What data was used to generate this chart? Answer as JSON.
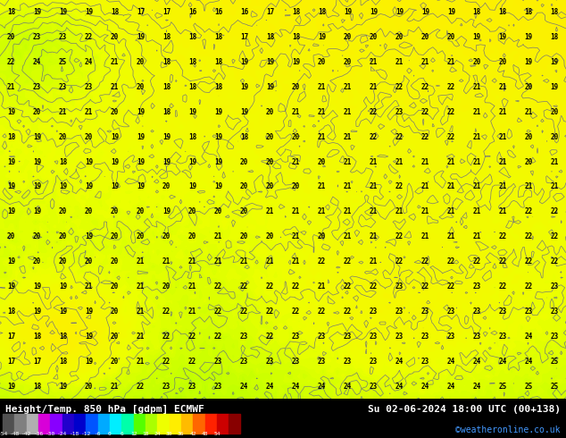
{
  "title_left": "Height/Temp. 850 hPa [gdpm] ECMWF",
  "title_right": "Su 02-06-2024 18:00 UTC (00+138)",
  "credit": "©weatheronline.co.uk",
  "colorbar_ticks": [
    -54,
    -48,
    -42,
    -36,
    -30,
    -24,
    -18,
    -12,
    -6,
    0,
    6,
    12,
    18,
    24,
    30,
    36,
    42,
    48,
    54
  ],
  "colorbar_colors": [
    "#808080",
    "#a0a0a0",
    "#c0c0c0",
    "#cc00cc",
    "#aa00ff",
    "#5500ff",
    "#0000ff",
    "#0044ff",
    "#0088ff",
    "#00ccff",
    "#00ffcc",
    "#00ff44",
    "#88ff00",
    "#ccff00",
    "#ffff00",
    "#ffcc00",
    "#ff8800",
    "#ff4400",
    "#cc0000",
    "#880000"
  ],
  "bg_color": "#ffcc00",
  "map_number_color": "#000000",
  "contour_color": "#4444aa",
  "fig_width": 6.34,
  "fig_height": 4.9,
  "dpi": 100
}
